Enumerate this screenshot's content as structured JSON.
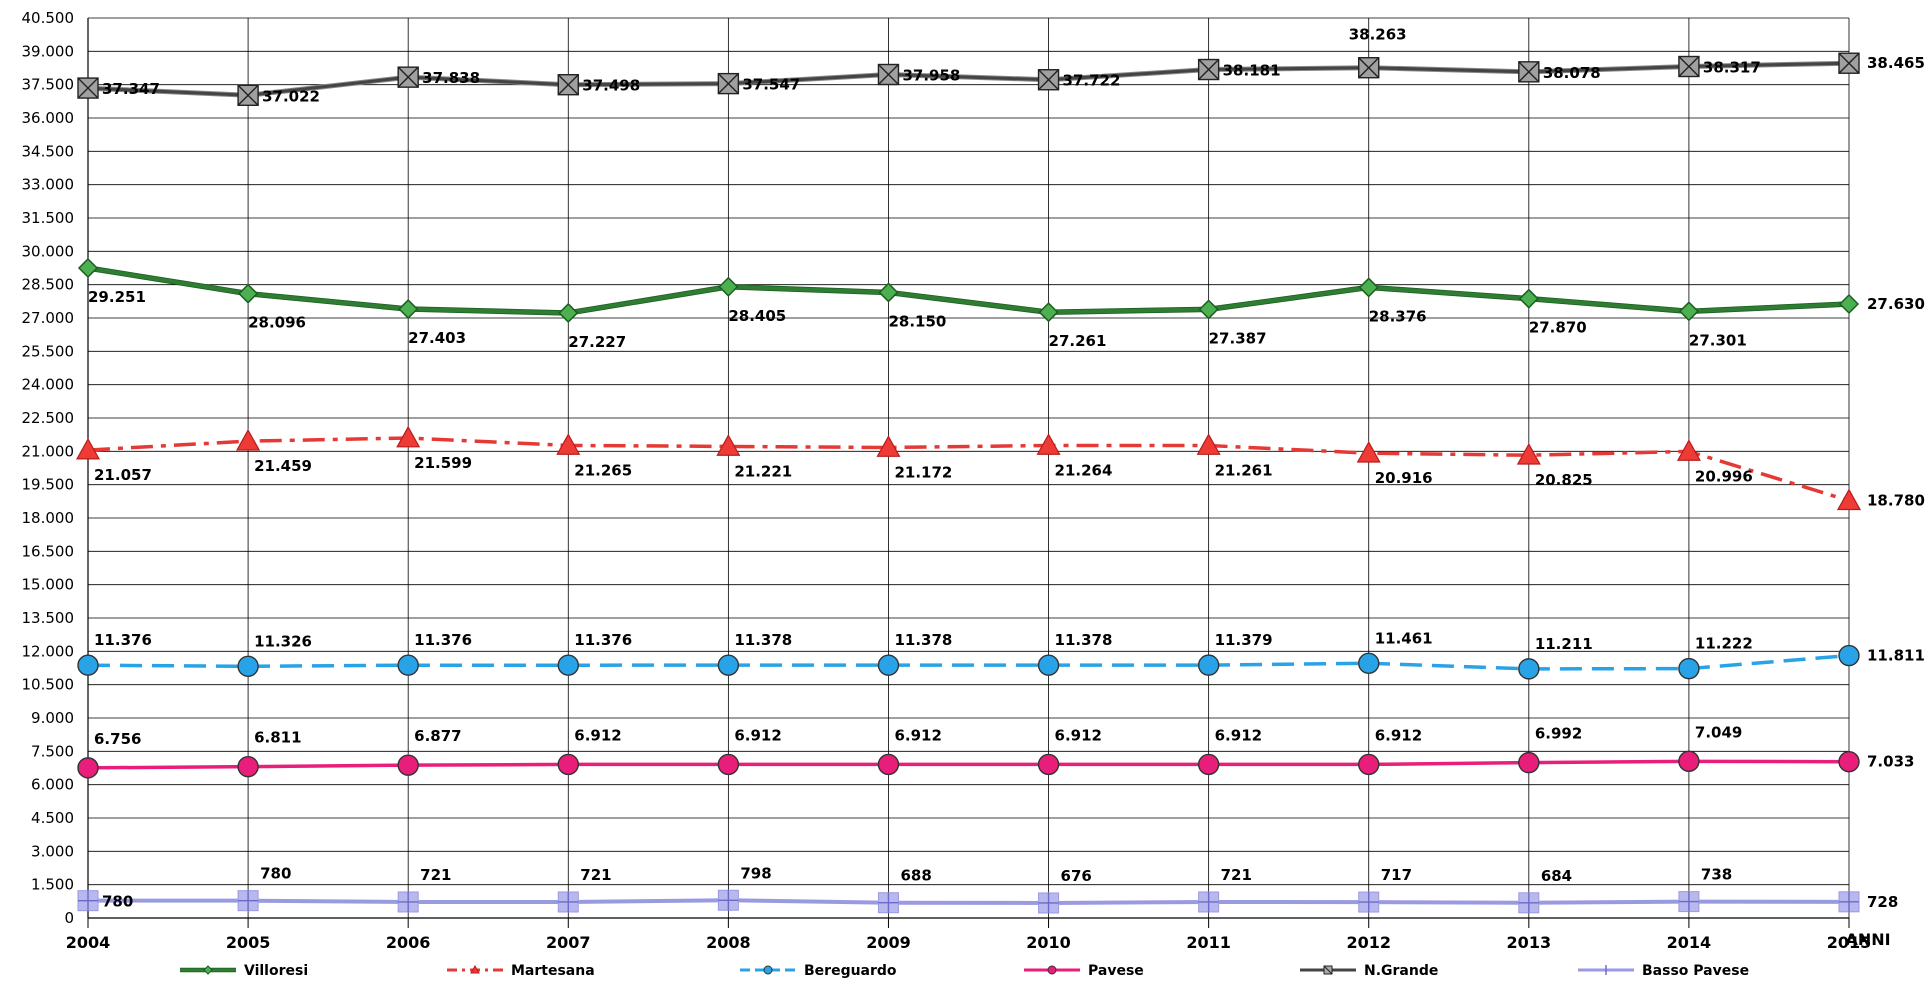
{
  "chart_data": {
    "type": "line",
    "x": [
      "2004",
      "2005",
      "2006",
      "2007",
      "2008",
      "2009",
      "2010",
      "2011",
      "2012",
      "2013",
      "2014",
      "2015"
    ],
    "xlabel": "ANNI",
    "ylabel": "",
    "ylim": [
      0,
      40500
    ],
    "yticks": [
      0,
      1500,
      3000,
      4500,
      6000,
      7500,
      9000,
      10500,
      12000,
      13500,
      15000,
      16500,
      18000,
      19500,
      21000,
      22500,
      24000,
      25500,
      27000,
      28500,
      30000,
      31500,
      33000,
      34500,
      36000,
      37500,
      39000,
      40500
    ],
    "ytick_labels": [
      "0",
      "1.500",
      "3.000",
      "4.500",
      "6.000",
      "7.500",
      "9.000",
      "10.500",
      "12.000",
      "13.500",
      "15.000",
      "16.500",
      "18.000",
      "19.500",
      "21.000",
      "22.500",
      "24.000",
      "25.500",
      "27.000",
      "28.500",
      "30.000",
      "31.500",
      "33.000",
      "34.500",
      "36.000",
      "37.500",
      "39.000",
      "40.500"
    ],
    "grid": true,
    "legend_position": "bottom",
    "series": [
      {
        "name": "Villoresi",
        "color": "#2e7d32",
        "dash": "solid",
        "marker": "diamond",
        "values": [
          29251,
          28096,
          27403,
          27227,
          28405,
          28150,
          27261,
          27387,
          28376,
          27870,
          27301,
          27630
        ],
        "labels": [
          "29.251",
          "28.096",
          "27.403",
          "27.227",
          "28.405",
          "28.150",
          "27.261",
          "27.387",
          "28.376",
          "27.870",
          "27.301",
          "27.630"
        ]
      },
      {
        "name": "Martesana",
        "color": "#e53935",
        "dash": "dashdot",
        "marker": "triangle",
        "values": [
          21057,
          21459,
          21599,
          21265,
          21221,
          21172,
          21264,
          21261,
          20916,
          20825,
          20996,
          18780
        ],
        "labels": [
          "21.057",
          "21.459",
          "21.599",
          "21.265",
          "21.221",
          "21.172",
          "21.264",
          "21.261",
          "20.916",
          "20.825",
          "20.996",
          "18.780"
        ]
      },
      {
        "name": "Bereguardo",
        "color": "#29a3e8",
        "dash": "dashed",
        "marker": "circle",
        "values": [
          11376,
          11326,
          11376,
          11376,
          11378,
          11378,
          11378,
          11379,
          11461,
          11211,
          11222,
          11811
        ],
        "labels": [
          "11.376",
          "11.326",
          "11.376",
          "11.376",
          "11.378",
          "11.378",
          "11.378",
          "11.379",
          "11.461",
          "11.211",
          "11.222",
          "11.811"
        ]
      },
      {
        "name": "Pavese",
        "color": "#e91e7a",
        "dash": "solid",
        "marker": "circle",
        "values": [
          6756,
          6811,
          6877,
          6912,
          6912,
          6912,
          6912,
          6912,
          6912,
          6992,
          7049,
          7033
        ],
        "labels": [
          "6.756",
          "6.811",
          "6.877",
          "6.912",
          "6.912",
          "6.912",
          "6.912",
          "6.912",
          "6.912",
          "6.992",
          "7.049",
          "7.033"
        ]
      },
      {
        "name": "N.Grande",
        "color": "#444444",
        "dash": "solid",
        "marker": "xsquare",
        "values": [
          37347,
          37022,
          37838,
          37498,
          37547,
          37958,
          37722,
          38181,
          38263,
          38078,
          38317,
          38465
        ],
        "labels": [
          "37.347",
          "37.022",
          "37.838",
          "37.498",
          "37.547",
          "37.958",
          "37.722",
          "38.181",
          "38.263",
          "38.078",
          "38.317",
          "38.465"
        ]
      },
      {
        "name": "Basso Pavese",
        "color": "#9a9ae0",
        "dash": "solid",
        "marker": "plussquare",
        "values": [
          780,
          780,
          721,
          721,
          798,
          688,
          676,
          721,
          717,
          684,
          738,
          728
        ],
        "labels": [
          "780",
          "780",
          "721",
          "721",
          "798",
          "688",
          "676",
          "721",
          "717",
          "684",
          "738",
          "728"
        ]
      }
    ]
  }
}
